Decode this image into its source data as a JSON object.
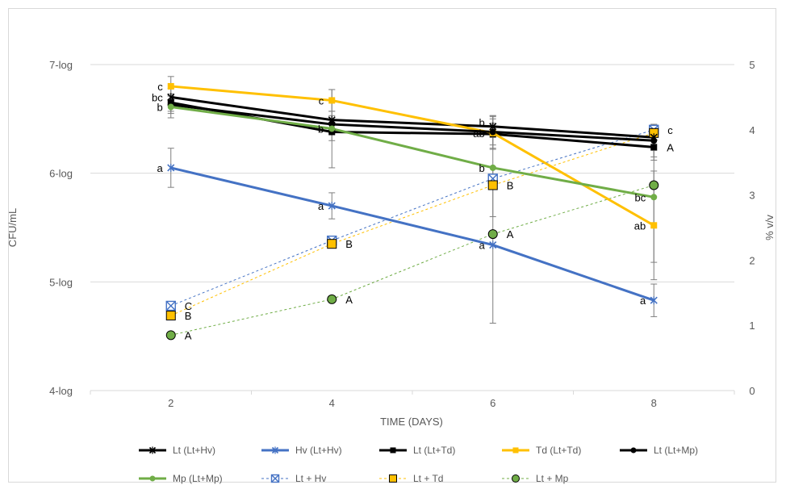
{
  "chart_data": {
    "type": "line",
    "title": "",
    "xlabel": "TIME (DAYS)",
    "ylabel_left": "CFU/mL",
    "ylabel_right": "% v/v",
    "x": [
      2,
      4,
      6,
      8
    ],
    "x_tick_labels": [
      "2",
      "4",
      "6",
      "8"
    ],
    "y_left_range": [
      4,
      7
    ],
    "y_left_tick_labels": [
      "4-log",
      "5-log",
      "6-log",
      "7-log"
    ],
    "y_right_range": [
      0,
      5
    ],
    "y_right_tick_labels": [
      "0",
      "1",
      "2",
      "3",
      "4",
      "5"
    ],
    "grid": true,
    "legend_position": "bottom",
    "series": [
      {
        "name": "Lt (Lt+Hv)",
        "axis": "left",
        "color": "#000000",
        "style": "solid",
        "marker": "x",
        "values": [
          6.7,
          6.49,
          6.43,
          6.33
        ],
        "error": [
          0.08,
          0.08,
          0.1,
          0.12
        ],
        "labels": [
          "",
          "",
          "",
          ""
        ]
      },
      {
        "name": "Hv (Lt+Hv)",
        "axis": "left",
        "color": "#4472c4",
        "style": "solid",
        "marker": "x",
        "values": [
          6.05,
          5.7,
          5.34,
          4.83
        ],
        "error": [
          0.18,
          0.12,
          0.72,
          0.15
        ],
        "labels": [
          "a",
          "a",
          "a",
          "a"
        ]
      },
      {
        "name": "Lt (Lt+Td)",
        "axis": "left",
        "color": "#000000",
        "style": "solid",
        "marker": "square",
        "values": [
          6.65,
          6.38,
          6.36,
          6.24
        ],
        "error": [
          0.08,
          0.08,
          0.1,
          0.12
        ],
        "labels": [
          "",
          "",
          "",
          "A"
        ]
      },
      {
        "name": "Td (Lt+Td)",
        "axis": "left",
        "color": "#ffc000",
        "style": "solid",
        "marker": "square",
        "values": [
          6.8,
          6.67,
          6.37,
          5.52
        ],
        "error": [
          0.09,
          0.1,
          0.15,
          0.5
        ],
        "labels": [
          "c",
          "c",
          "ab",
          "ab"
        ]
      },
      {
        "name": "Lt (Lt+Mp)",
        "axis": "left",
        "color": "#000000",
        "style": "solid",
        "marker": "circle",
        "values": [
          6.63,
          6.45,
          6.38,
          6.3
        ],
        "error": [
          0.08,
          0.08,
          0.15,
          0.15
        ],
        "labels": [
          "",
          "",
          "",
          ""
        ]
      },
      {
        "name": "Mp (Lt+Mp)",
        "axis": "left",
        "color": "#70ad47",
        "style": "solid",
        "marker": "circle",
        "values": [
          6.61,
          6.41,
          6.05,
          5.78
        ],
        "error": [
          0.1,
          0.36,
          0.45,
          0.6
        ],
        "labels": [
          "b",
          "b",
          "b",
          "bc"
        ]
      },
      {
        "name": "Lt + Hv",
        "axis": "right",
        "color": "#4472c4",
        "style": "dashed",
        "marker": "boxx",
        "values": [
          1.3,
          2.3,
          3.25,
          4.0
        ],
        "error": [
          0,
          0,
          0,
          0
        ],
        "labels": [
          "C",
          "",
          "",
          "c"
        ]
      },
      {
        "name": "Lt + Td",
        "axis": "right",
        "color": "#ffc000",
        "style": "dashed",
        "marker": "squaredot",
        "values": [
          1.15,
          2.25,
          3.15,
          3.95
        ],
        "error": [
          0,
          0,
          0,
          0
        ],
        "labels": [
          "B",
          "B",
          "B",
          ""
        ]
      },
      {
        "name": "Lt + Mp",
        "axis": "right",
        "color": "#70ad47",
        "style": "dashed",
        "marker": "circledot",
        "values": [
          0.85,
          1.4,
          2.4,
          3.15
        ],
        "error": [
          0,
          0,
          0,
          0
        ],
        "labels": [
          "A",
          "A",
          "A",
          ""
        ]
      }
    ],
    "extra_labels": [
      {
        "text": "bc",
        "x": 2,
        "axis": "left",
        "y": 6.7
      },
      {
        "text": "b",
        "x": 6,
        "axis": "left",
        "y": 6.47
      }
    ]
  }
}
